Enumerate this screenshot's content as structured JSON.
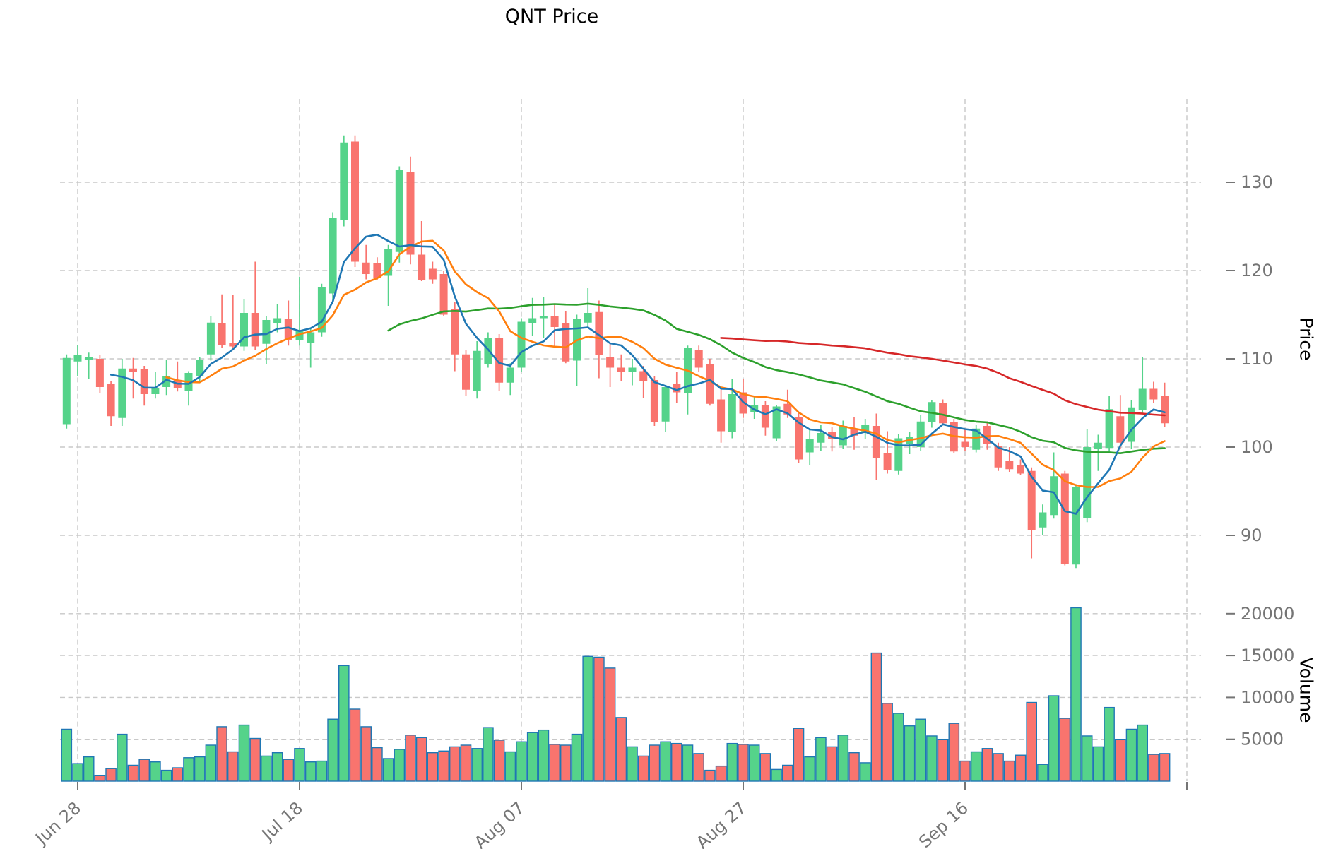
{
  "chart_data": {
    "type": "candlestick",
    "title": "QNT Price",
    "ylabel": "Price",
    "ylabel2": "Volume",
    "grid": true,
    "price_axis": {
      "ticks": [
        90,
        100,
        110,
        120,
        130
      ]
    },
    "volume_axis": {
      "ticks": [
        5000,
        10000,
        15000,
        20000
      ]
    },
    "x_ticks": [
      {
        "i": 1,
        "label": "Jun 28"
      },
      {
        "i": 21,
        "label": "Jul 18"
      },
      {
        "i": 41,
        "label": "Aug 07"
      },
      {
        "i": 61,
        "label": "Aug 27"
      },
      {
        "i": 81,
        "label": "Sep 16"
      },
      {
        "i": 101,
        "label": ""
      }
    ],
    "columns": [
      "date",
      "open",
      "high",
      "low",
      "close",
      "volume"
    ],
    "candles": [
      [
        "Jun 27",
        102.6,
        110.5,
        102.1,
        110.1,
        6200
      ],
      [
        "Jun 28",
        109.7,
        111.6,
        108.0,
        110.4,
        2100
      ],
      [
        "Jun 29",
        109.9,
        110.7,
        107.7,
        110.2,
        2900
      ],
      [
        "Jun 30",
        110.0,
        110.4,
        106.1,
        106.8,
        700
      ],
      [
        "Jul 01",
        107.2,
        107.5,
        102.4,
        103.5,
        1500
      ],
      [
        "Jul 02",
        103.3,
        110.0,
        102.4,
        108.9,
        5600
      ],
      [
        "Jul 03",
        108.9,
        110.1,
        105.5,
        108.5,
        1900
      ],
      [
        "Jul 04",
        108.8,
        109.2,
        104.7,
        106.0,
        2600
      ],
      [
        "Jul 05",
        106.0,
        108.5,
        105.5,
        106.7,
        2300
      ],
      [
        "Jul 06",
        106.8,
        109.9,
        105.9,
        108.0,
        1300
      ],
      [
        "Jul 07",
        107.6,
        109.7,
        106.3,
        106.7,
        1600
      ],
      [
        "Jul 08",
        106.4,
        108.6,
        104.7,
        108.4,
        2800
      ],
      [
        "Jul 09",
        108.0,
        110.2,
        107.4,
        109.9,
        2900
      ],
      [
        "Jul 10",
        110.5,
        114.8,
        109.8,
        114.1,
        4300
      ],
      [
        "Jul 11",
        114.0,
        117.3,
        111.2,
        111.6,
        6500
      ],
      [
        "Jul 12",
        111.8,
        117.2,
        111.2,
        111.4,
        3500
      ],
      [
        "Jul 13",
        111.4,
        116.8,
        110.9,
        115.2,
        6700
      ],
      [
        "Jul 14",
        115.2,
        121.0,
        111.0,
        111.4,
        5100
      ],
      [
        "Jul 15",
        111.7,
        114.8,
        109.4,
        114.4,
        3000
      ],
      [
        "Jul 16",
        114.0,
        116.2,
        113.0,
        114.6,
        3400
      ],
      [
        "Jul 17",
        114.5,
        116.6,
        111.5,
        112.1,
        2600
      ],
      [
        "Jul 18",
        112.1,
        119.3,
        111.5,
        113.2,
        3900
      ],
      [
        "Jul 19",
        111.8,
        113.4,
        109.0,
        113.0,
        2300
      ],
      [
        "Jul 20",
        113.0,
        118.5,
        112.5,
        118.1,
        2400
      ],
      [
        "Jul 21",
        117.4,
        126.6,
        116.6,
        126.0,
        7400
      ],
      [
        "Jul 22",
        125.7,
        135.3,
        125.0,
        134.5,
        13800
      ],
      [
        "Jul 23",
        134.6,
        135.3,
        120.4,
        121.0,
        8600
      ],
      [
        "Jul 24",
        120.9,
        122.9,
        119.0,
        119.6,
        6500
      ],
      [
        "Jul 25",
        120.8,
        121.5,
        118.9,
        119.2,
        4000
      ],
      [
        "Jul 26",
        119.4,
        122.9,
        116.0,
        122.4,
        2700
      ],
      [
        "Jul 27",
        122.1,
        131.8,
        120.9,
        131.4,
        3800
      ],
      [
        "Jul 28",
        131.2,
        132.9,
        120.7,
        121.8,
        5500
      ],
      [
        "Jul 29",
        121.8,
        125.6,
        118.8,
        118.9,
        5200
      ],
      [
        "Jul 30",
        120.2,
        121.0,
        118.5,
        119.0,
        3400
      ],
      [
        "Jul 31",
        119.6,
        120.0,
        114.8,
        115.0,
        3600
      ],
      [
        "Aug 01",
        115.6,
        116.4,
        108.6,
        110.5,
        4100
      ],
      [
        "Aug 02",
        110.5,
        111.0,
        105.8,
        106.5,
        4300
      ],
      [
        "Aug 03",
        106.4,
        112.0,
        105.5,
        110.9,
        3900
      ],
      [
        "Aug 04",
        109.4,
        113.0,
        109.0,
        112.4,
        6400
      ],
      [
        "Aug 05",
        112.4,
        112.8,
        106.4,
        107.3,
        4900
      ],
      [
        "Aug 06",
        107.3,
        109.5,
        105.9,
        109.0,
        3500
      ],
      [
        "Aug 07",
        109.0,
        114.6,
        108.5,
        114.2,
        4700
      ],
      [
        "Aug 08",
        114.0,
        116.9,
        112.6,
        114.6,
        5800
      ],
      [
        "Aug 09",
        114.6,
        117.0,
        112.4,
        114.8,
        6100
      ],
      [
        "Aug 10",
        114.8,
        116.2,
        111.4,
        113.6,
        4400
      ],
      [
        "Aug 11",
        114.0,
        115.4,
        109.5,
        109.7,
        4300
      ],
      [
        "Aug 12",
        109.8,
        115.0,
        106.9,
        114.5,
        5600
      ],
      [
        "Aug 13",
        114.1,
        118.0,
        113.5,
        115.2,
        14900
      ],
      [
        "Aug 14",
        115.3,
        116.6,
        107.8,
        110.4,
        14800
      ],
      [
        "Aug 15",
        110.2,
        111.7,
        106.8,
        109.0,
        13500
      ],
      [
        "Aug 16",
        109.0,
        110.5,
        107.5,
        108.5,
        7600
      ],
      [
        "Aug 17",
        108.5,
        110.0,
        107.0,
        109.0,
        4100
      ],
      [
        "Aug 18",
        108.6,
        109.2,
        105.6,
        107.5,
        3000
      ],
      [
        "Aug 19",
        107.6,
        108.0,
        102.4,
        102.8,
        4300
      ],
      [
        "Aug 20",
        102.9,
        107.0,
        101.7,
        106.8,
        4700
      ],
      [
        "Aug 21",
        107.2,
        108.5,
        105.0,
        106.2,
        4500
      ],
      [
        "Aug 22",
        106.1,
        111.5,
        103.7,
        111.2,
        4300
      ],
      [
        "Aug 23",
        111.0,
        111.5,
        108.5,
        109.0,
        3300
      ],
      [
        "Aug 24",
        109.4,
        110.0,
        104.7,
        104.9,
        1300
      ],
      [
        "Aug 25",
        105.4,
        106.5,
        100.5,
        101.8,
        1800
      ],
      [
        "Aug 26",
        101.7,
        107.7,
        101.0,
        106.0,
        4500
      ],
      [
        "Aug 27",
        106.2,
        107.7,
        103.3,
        103.8,
        4400
      ],
      [
        "Aug 28",
        104.0,
        105.8,
        103.2,
        104.8,
        4300
      ],
      [
        "Aug 29",
        104.8,
        105.2,
        101.3,
        102.2,
        3300
      ],
      [
        "Aug 30",
        101.0,
        104.8,
        100.7,
        104.6,
        1400
      ],
      [
        "Aug 31",
        104.9,
        106.5,
        103.3,
        103.7,
        1900
      ],
      [
        "Sep 01",
        103.4,
        104.0,
        98.2,
        98.6,
        6300
      ],
      [
        "Sep 02",
        99.4,
        102.1,
        98.0,
        100.9,
        2900
      ],
      [
        "Sep 03",
        100.5,
        102.5,
        99.6,
        101.6,
        5200
      ],
      [
        "Sep 04",
        101.7,
        102.3,
        99.5,
        100.9,
        4100
      ],
      [
        "Sep 05",
        100.2,
        103.0,
        99.8,
        102.4,
        5500
      ],
      [
        "Sep 06",
        102.1,
        103.4,
        99.7,
        101.3,
        3400
      ],
      [
        "Sep 07",
        101.6,
        103.2,
        100.9,
        102.5,
        2200
      ],
      [
        "Sep 08",
        102.4,
        103.8,
        96.3,
        98.8,
        15300
      ],
      [
        "Sep 09",
        99.3,
        101.8,
        97.0,
        97.4,
        9300
      ],
      [
        "Sep 10",
        97.3,
        101.5,
        96.9,
        101.0,
        8100
      ],
      [
        "Sep 11",
        100.4,
        101.7,
        99.2,
        101.2,
        6600
      ],
      [
        "Sep 12",
        100.0,
        103.6,
        99.6,
        102.9,
        7400
      ],
      [
        "Sep 13",
        102.8,
        105.3,
        102.2,
        105.1,
        5400
      ],
      [
        "Sep 14",
        105.0,
        105.4,
        102.5,
        102.7,
        5000
      ],
      [
        "Sep 15",
        102.8,
        103.2,
        99.3,
        99.5,
        6900
      ],
      [
        "Sep 16",
        100.6,
        102.1,
        99.6,
        100.0,
        2400
      ],
      [
        "Sep 17",
        99.7,
        102.5,
        99.4,
        102.1,
        3500
      ],
      [
        "Sep 18",
        102.4,
        102.9,
        99.7,
        100.4,
        3900
      ],
      [
        "Sep 19",
        100.1,
        100.5,
        97.3,
        97.7,
        3300
      ],
      [
        "Sep 20",
        98.4,
        100.0,
        97.2,
        97.5,
        2400
      ],
      [
        "Sep 21",
        98.0,
        98.6,
        96.8,
        97.0,
        3100
      ],
      [
        "Sep 22",
        97.3,
        97.7,
        87.4,
        90.6,
        9400
      ],
      [
        "Sep 23",
        90.9,
        93.5,
        90.0,
        92.6,
        2000
      ],
      [
        "Sep 24",
        92.3,
        99.4,
        91.9,
        96.7,
        10200
      ],
      [
        "Sep 25",
        97.0,
        97.3,
        86.6,
        86.8,
        7500
      ],
      [
        "Sep 26",
        86.7,
        95.8,
        86.3,
        95.5,
        20700
      ],
      [
        "Sep 27",
        92.0,
        102.0,
        91.5,
        100.0,
        5400
      ],
      [
        "Sep 28",
        99.8,
        101.4,
        97.3,
        100.5,
        4100
      ],
      [
        "Sep 29",
        99.9,
        105.8,
        99.5,
        104.3,
        8800
      ],
      [
        "Sep 30",
        103.5,
        105.9,
        99.8,
        100.5,
        5000
      ],
      [
        "Oct 01",
        100.6,
        105.3,
        99.8,
        104.5,
        6200
      ],
      [
        "Oct 02",
        104.2,
        110.2,
        103.8,
        106.6,
        6700
      ],
      [
        "Oct 03",
        106.6,
        107.4,
        105.0,
        105.4,
        3200
      ],
      [
        "Oct 04",
        105.8,
        107.3,
        102.3,
        102.7,
        3300
      ]
    ],
    "moving_averages": [
      {
        "name": "SMA30",
        "window": 30,
        "color": "#2ca02c"
      },
      {
        "name": "SMA60",
        "window": 60,
        "color": "#d62728"
      },
      {
        "name": "SMA10",
        "window": 10,
        "color": "#ff7f0e"
      },
      {
        "name": "SMA5",
        "window": 5,
        "color": "#1f77b4"
      }
    ]
  },
  "style": {
    "up_color": "#55d38a",
    "down_color": "#f9746e",
    "volume_edge_color": "#1f77b4",
    "grid_color": "#c8c8c8",
    "tick_label_color": "#757575",
    "title_color": "#000000"
  }
}
